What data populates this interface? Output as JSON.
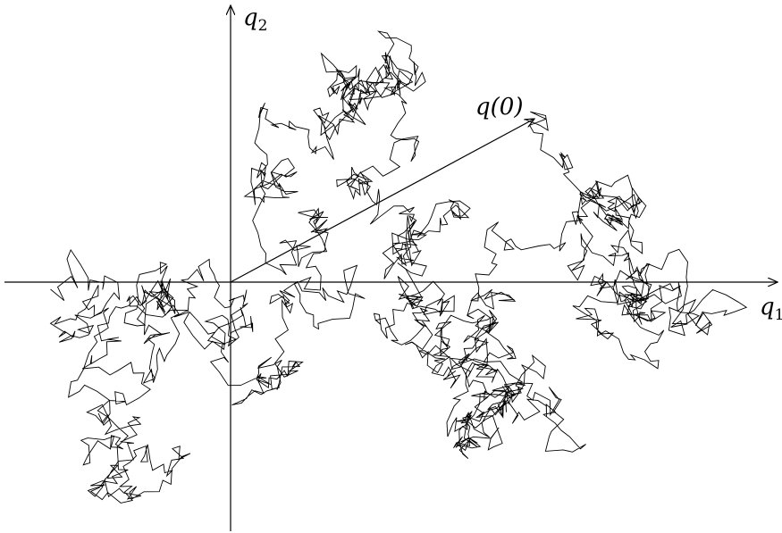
{
  "axes": {
    "horizontal": {
      "symbol": "q",
      "subscript": "1"
    },
    "vertical": {
      "symbol": "q",
      "subscript": "2"
    }
  },
  "vector_label": "q(0)"
}
